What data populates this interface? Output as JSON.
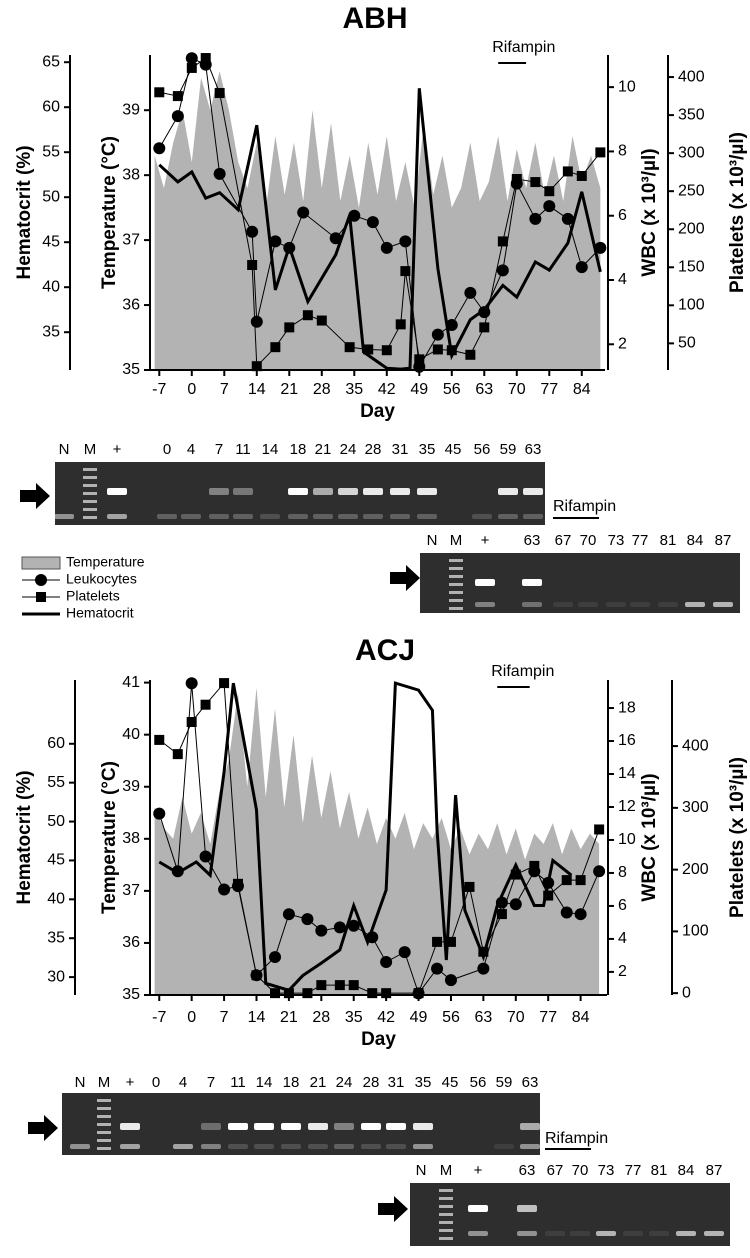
{
  "chart_data": [
    {
      "type": "multi-axis",
      "title": "ABH",
      "x_label": "Day",
      "xlim": [
        -9,
        89
      ],
      "xticks": [
        -7,
        0,
        7,
        14,
        21,
        28,
        35,
        42,
        49,
        56,
        63,
        70,
        77,
        84
      ],
      "y_label": "Temperature (°C)",
      "ylim": [
        35,
        39.85
      ],
      "yticks": [
        35,
        36,
        37,
        38,
        39
      ],
      "y2_label": "WBC (x 10³/µl)",
      "y2lim": [
        1.2,
        11.0
      ],
      "y2ticks": [
        2,
        4,
        6,
        8,
        10
      ],
      "y3_label": "Platelets (x 10³/µl)",
      "y3lim": [
        15,
        429
      ],
      "y3ticks": [
        50,
        100,
        150,
        200,
        250,
        300,
        350,
        400
      ],
      "y4_label": "Hematocrit (%)",
      "y4lim": [
        30.8,
        65.8
      ],
      "y4ticks": [
        35,
        40,
        45,
        50,
        55,
        60,
        65
      ],
      "annotation": {
        "text": "Rifampin",
        "x": [
          66,
          72
        ]
      },
      "series": [
        {
          "name": "Temperature",
          "kind": "area",
          "axis": "y",
          "color": "#b3b3b3",
          "x": [
            -8,
            -6,
            -4,
            -2,
            0,
            2,
            4,
            6,
            8,
            10,
            12,
            14,
            16,
            18,
            20,
            22,
            24,
            26,
            28,
            30,
            32,
            34,
            36,
            38,
            40,
            42,
            44,
            46,
            48,
            50,
            52,
            54,
            56,
            58,
            60,
            62,
            64,
            66,
            68,
            70,
            72,
            74,
            76,
            78,
            80,
            82,
            84,
            86,
            88
          ],
          "values": [
            38.3,
            37.8,
            38.5,
            39.0,
            38.2,
            39.5,
            39.0,
            39.6,
            39.0,
            38.2,
            37.8,
            38.5,
            37.5,
            38.6,
            37.7,
            38.5,
            37.6,
            39.0,
            37.8,
            38.8,
            37.6,
            38.3,
            37.5,
            38.5,
            37.7,
            38.6,
            37.6,
            38.2,
            37.5,
            38.8,
            37.7,
            38.3,
            37.5,
            37.8,
            38.5,
            37.6,
            37.9,
            38.6,
            37.6,
            38.4,
            37.8,
            38.5,
            37.7,
            38.3,
            37.6,
            38.6,
            37.9,
            38.3,
            37.8
          ]
        },
        {
          "name": "Leukocytes",
          "kind": "marker",
          "marker": "circle",
          "axis": "y2",
          "color": "#000000",
          "x": [
            -7,
            -3,
            0,
            3,
            6,
            13,
            14,
            18,
            21,
            24,
            31,
            35,
            39,
            42,
            46,
            49,
            53,
            56,
            60,
            63,
            67,
            70,
            74,
            77,
            81,
            84,
            88
          ],
          "values": [
            8.1,
            9.1,
            10.9,
            10.7,
            7.3,
            5.5,
            2.7,
            5.2,
            5.0,
            6.1,
            5.3,
            6.0,
            5.8,
            5.0,
            5.2,
            1.3,
            2.3,
            2.6,
            3.6,
            3.0,
            4.3,
            7.0,
            5.9,
            6.3,
            5.9,
            4.4,
            5.0
          ]
        },
        {
          "name": "Platelets",
          "kind": "marker",
          "marker": "square",
          "axis": "y3",
          "color": "#000000",
          "x": [
            -7,
            -3,
            0,
            3,
            6,
            13,
            14,
            18,
            21,
            25,
            28,
            34,
            38,
            42,
            45,
            46,
            49,
            53,
            56,
            60,
            63,
            67,
            70,
            74,
            77,
            81,
            84,
            88
          ],
          "values": [
            380,
            375,
            412,
            425,
            379,
            153,
            20,
            45,
            71,
            87,
            80,
            45,
            42,
            41,
            75,
            145,
            29,
            42,
            41,
            35,
            71,
            184,
            266,
            262,
            250,
            276,
            270,
            301
          ]
        },
        {
          "name": "Hematocrit",
          "kind": "line",
          "axis": "y4",
          "color": "#000000",
          "x": [
            -7,
            -3,
            0,
            3,
            6,
            10,
            14,
            18,
            21,
            25,
            31,
            34,
            37,
            42,
            45,
            47,
            49,
            53,
            56,
            60,
            63,
            67,
            70,
            74,
            77,
            81,
            84,
            88
          ],
          "values": [
            53.6,
            51.7,
            52.8,
            49.9,
            50.5,
            48.6,
            58.0,
            39.7,
            44.5,
            38.4,
            43.6,
            48.0,
            32.8,
            31.0,
            30.9,
            31.0,
            62.1,
            42.1,
            32.4,
            36.4,
            37.5,
            40.2,
            38.9,
            42.8,
            41.9,
            44.9,
            50.6,
            41.7
          ]
        }
      ]
    },
    {
      "type": "multi-axis",
      "title": "ACJ",
      "x_label": "Day",
      "xlim": [
        -9,
        89.7
      ],
      "xticks": [
        -7,
        0,
        7,
        14,
        21,
        28,
        35,
        42,
        49,
        56,
        63,
        70,
        77,
        84
      ],
      "y_label": "Temperature (°C)",
      "ylim": [
        35,
        41.05
      ],
      "yticks": [
        35,
        36,
        37,
        38,
        39,
        40,
        41
      ],
      "y2_label": "WBC (x 10³/µl)",
      "y2lim": [
        0.6,
        19.7
      ],
      "y2ticks": [
        2,
        4,
        6,
        8,
        10,
        12,
        14,
        16,
        18
      ],
      "y3_label": "Platelets (x 10³/µl)",
      "y3lim": [
        -3,
        507
      ],
      "y3ticks": [
        0,
        100,
        200,
        300,
        400
      ],
      "y4_label": "Hematocrit (%)",
      "y4lim": [
        27.7,
        68.2
      ],
      "y4ticks": [
        30,
        35,
        40,
        45,
        50,
        55,
        60
      ],
      "annotation": {
        "text": "Rifampin",
        "x": [
          66,
          73
        ]
      },
      "series": [
        {
          "kind": "area",
          "axis": "y",
          "color": "#b3b3b3",
          "x": [
            -8,
            -6,
            -4,
            -2,
            0,
            2,
            4,
            6,
            8,
            10,
            12,
            14,
            16,
            18,
            20,
            22,
            24,
            26,
            28,
            30,
            32,
            34,
            36,
            38,
            40,
            42,
            44,
            46,
            48,
            50,
            52,
            54,
            56,
            58,
            60,
            62,
            64,
            66,
            68,
            70,
            72,
            74,
            76,
            78,
            80,
            82,
            84,
            86,
            88
          ],
          "values": [
            38.6,
            38.2,
            38.0,
            38.8,
            38.1,
            38.5,
            37.9,
            38.9,
            39.5,
            40.8,
            39.0,
            40.9,
            38.8,
            40.5,
            38.6,
            40.0,
            38.3,
            39.6,
            38.4,
            39.3,
            38.2,
            38.9,
            38.0,
            38.6,
            37.9,
            38.4,
            38.0,
            38.5,
            37.8,
            38.3,
            38.0,
            38.4,
            37.8,
            38.2,
            37.7,
            38.1,
            37.8,
            38.3,
            37.7,
            38.2,
            37.6,
            38.1,
            37.9,
            38.3,
            37.7,
            38.2,
            37.8,
            38.1,
            37.9
          ]
        },
        {
          "kind": "marker",
          "marker": "circle",
          "axis": "y2",
          "color": "#000000",
          "x": [
            -7,
            -3,
            0,
            3,
            7,
            10,
            14,
            18,
            21,
            25,
            28,
            32,
            35,
            39,
            42,
            46,
            49,
            53,
            56,
            63,
            67,
            70,
            74,
            77,
            81,
            84,
            88
          ],
          "values": [
            11.6,
            8.1,
            19.5,
            9.0,
            7.0,
            7.2,
            1.8,
            2.9,
            5.5,
            5.2,
            4.5,
            4.7,
            4.8,
            4.1,
            2.6,
            3.2,
            0.7,
            2.2,
            1.5,
            2.2,
            6.2,
            6.1,
            8.1,
            7.4,
            5.6,
            5.5,
            8.1
          ]
        },
        {
          "kind": "marker",
          "marker": "square",
          "axis": "y3",
          "color": "#000000",
          "x": [
            -7,
            -3,
            0,
            3,
            7,
            10,
            14,
            18,
            21,
            25,
            28,
            32,
            35,
            39,
            42,
            49,
            53,
            56,
            60,
            63,
            67,
            70,
            74,
            77,
            81,
            84,
            88
          ],
          "values": [
            410,
            387,
            439,
            467,
            502,
            177,
            29,
            0,
            0,
            0,
            13,
            13,
            13,
            0,
            0,
            0,
            83,
            83,
            172,
            67,
            128,
            192,
            206,
            158,
            183,
            183,
            265
          ]
        },
        {
          "kind": "line",
          "axis": "y4",
          "color": "#000000",
          "x": [
            -7,
            -3,
            1,
            4,
            7,
            9,
            14,
            16,
            21,
            24,
            28,
            32,
            35,
            38,
            42,
            44,
            49,
            52,
            53,
            55,
            57,
            59,
            63,
            66,
            70,
            74,
            76,
            78,
            82
          ],
          "values": [
            44.8,
            43.4,
            44.8,
            43.1,
            56.4,
            67.8,
            51.5,
            29.2,
            28.3,
            30.2,
            31.8,
            33.5,
            39.2,
            34.5,
            41.2,
            67.8,
            66.9,
            64.3,
            48.9,
            32.2,
            53.4,
            38.6,
            32.6,
            39.2,
            44.4,
            39.2,
            39.2,
            45.0,
            43.1
          ]
        }
      ]
    }
  ],
  "gels": [
    {
      "lanes": [
        "N",
        "M",
        "+",
        "0",
        "4",
        "7",
        "11",
        "14",
        "18",
        "21",
        "24",
        "28",
        "31",
        "35",
        "45",
        "56",
        "59",
        "63"
      ],
      "annotation": "Rifampin"
    },
    {
      "lanes": [
        "N",
        "M",
        "+",
        "63",
        "67",
        "70",
        "73",
        "77",
        "81",
        "84",
        "87"
      ]
    },
    {
      "lanes": [
        "N",
        "M",
        "+",
        "0",
        "4",
        "7",
        "11",
        "14",
        "18",
        "21",
        "24",
        "28",
        "31",
        "35",
        "45",
        "56",
        "59",
        "63"
      ],
      "annotation": "Rifampin"
    },
    {
      "lanes": [
        "N",
        "M",
        "+",
        "63",
        "67",
        "70",
        "73",
        "77",
        "81",
        "84",
        "87"
      ]
    }
  ]
}
